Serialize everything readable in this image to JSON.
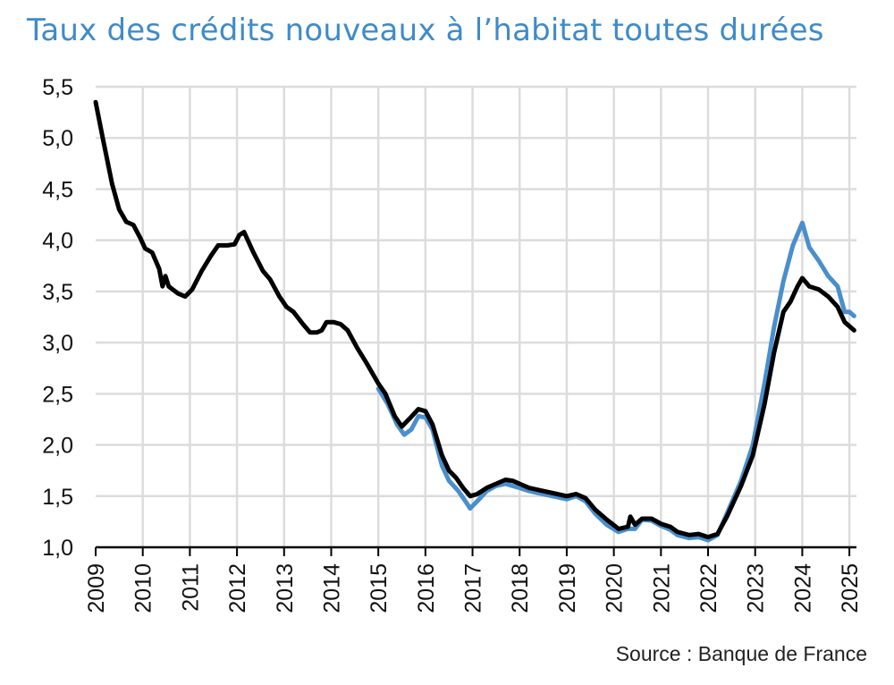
{
  "chart_data": {
    "type": "line",
    "title": "Taux des crédits nouveaux à l’habitat toutes durées",
    "source": "Source : Banque de France",
    "xlim": [
      2009,
      2025.15
    ],
    "ylim": [
      1.0,
      5.5
    ],
    "yticks": [
      "1,0",
      "1,5",
      "2,0",
      "2,5",
      "3,0",
      "3,5",
      "4,0",
      "4,5",
      "5,0",
      "5,5"
    ],
    "xticks": [
      "2009",
      "2010",
      "2011",
      "2012",
      "2013",
      "2014",
      "2015",
      "2016",
      "2017",
      "2018",
      "2019",
      "2020",
      "2021",
      "2022",
      "2023",
      "2024",
      "2025"
    ],
    "grid": true,
    "series": [
      {
        "color": "#000000",
        "points": [
          [
            2009.0,
            5.35
          ],
          [
            2009.15,
            5.0
          ],
          [
            2009.35,
            4.55
          ],
          [
            2009.5,
            4.3
          ],
          [
            2009.65,
            4.18
          ],
          [
            2009.8,
            4.15
          ],
          [
            2009.95,
            4.02
          ],
          [
            2010.05,
            3.92
          ],
          [
            2010.2,
            3.88
          ],
          [
            2010.35,
            3.72
          ],
          [
            2010.42,
            3.55
          ],
          [
            2010.48,
            3.65
          ],
          [
            2010.55,
            3.55
          ],
          [
            2010.75,
            3.48
          ],
          [
            2010.9,
            3.45
          ],
          [
            2011.05,
            3.52
          ],
          [
            2011.25,
            3.7
          ],
          [
            2011.45,
            3.85
          ],
          [
            2011.6,
            3.95
          ],
          [
            2011.8,
            3.95
          ],
          [
            2011.95,
            3.96
          ],
          [
            2012.05,
            4.05
          ],
          [
            2012.15,
            4.08
          ],
          [
            2012.35,
            3.88
          ],
          [
            2012.55,
            3.7
          ],
          [
            2012.7,
            3.62
          ],
          [
            2012.9,
            3.45
          ],
          [
            2013.05,
            3.35
          ],
          [
            2013.2,
            3.3
          ],
          [
            2013.4,
            3.18
          ],
          [
            2013.55,
            3.1
          ],
          [
            2013.7,
            3.1
          ],
          [
            2013.8,
            3.12
          ],
          [
            2013.9,
            3.2
          ],
          [
            2014.05,
            3.2
          ],
          [
            2014.2,
            3.18
          ],
          [
            2014.35,
            3.12
          ],
          [
            2014.55,
            2.95
          ],
          [
            2014.75,
            2.8
          ],
          [
            2014.9,
            2.68
          ],
          [
            2015.0,
            2.6
          ],
          [
            2015.15,
            2.5
          ],
          [
            2015.35,
            2.28
          ],
          [
            2015.5,
            2.18
          ],
          [
            2015.65,
            2.25
          ],
          [
            2015.85,
            2.35
          ],
          [
            2016.0,
            2.33
          ],
          [
            2016.15,
            2.2
          ],
          [
            2016.35,
            1.9
          ],
          [
            2016.5,
            1.75
          ],
          [
            2016.65,
            1.68
          ],
          [
            2016.8,
            1.58
          ],
          [
            2016.95,
            1.5
          ],
          [
            2017.1,
            1.52
          ],
          [
            2017.3,
            1.58
          ],
          [
            2017.5,
            1.62
          ],
          [
            2017.7,
            1.66
          ],
          [
            2017.85,
            1.65
          ],
          [
            2018.0,
            1.62
          ],
          [
            2018.2,
            1.58
          ],
          [
            2018.5,
            1.55
          ],
          [
            2018.8,
            1.52
          ],
          [
            2019.0,
            1.5
          ],
          [
            2019.2,
            1.52
          ],
          [
            2019.4,
            1.48
          ],
          [
            2019.6,
            1.37
          ],
          [
            2019.85,
            1.27
          ],
          [
            2020.1,
            1.18
          ],
          [
            2020.3,
            1.2
          ],
          [
            2020.35,
            1.3
          ],
          [
            2020.45,
            1.22
          ],
          [
            2020.6,
            1.28
          ],
          [
            2020.8,
            1.28
          ],
          [
            2021.0,
            1.23
          ],
          [
            2021.2,
            1.2
          ],
          [
            2021.35,
            1.15
          ],
          [
            2021.6,
            1.12
          ],
          [
            2021.8,
            1.13
          ],
          [
            2022.0,
            1.1
          ],
          [
            2022.2,
            1.13
          ],
          [
            2022.4,
            1.3
          ],
          [
            2022.7,
            1.6
          ],
          [
            2022.95,
            1.9
          ],
          [
            2023.2,
            2.4
          ],
          [
            2023.4,
            2.9
          ],
          [
            2023.6,
            3.3
          ],
          [
            2023.75,
            3.4
          ],
          [
            2023.9,
            3.55
          ],
          [
            2024.0,
            3.63
          ],
          [
            2024.15,
            3.55
          ],
          [
            2024.35,
            3.52
          ],
          [
            2024.55,
            3.45
          ],
          [
            2024.75,
            3.35
          ],
          [
            2024.9,
            3.2
          ],
          [
            2025.1,
            3.12
          ]
        ]
      },
      {
        "color": "#4a8fcc",
        "points": [
          [
            2015.0,
            2.55
          ],
          [
            2015.2,
            2.4
          ],
          [
            2015.4,
            2.2
          ],
          [
            2015.55,
            2.1
          ],
          [
            2015.7,
            2.15
          ],
          [
            2015.85,
            2.28
          ],
          [
            2016.0,
            2.27
          ],
          [
            2016.15,
            2.15
          ],
          [
            2016.35,
            1.8
          ],
          [
            2016.5,
            1.65
          ],
          [
            2016.7,
            1.55
          ],
          [
            2016.85,
            1.45
          ],
          [
            2016.95,
            1.38
          ],
          [
            2017.1,
            1.45
          ],
          [
            2017.3,
            1.55
          ],
          [
            2017.5,
            1.6
          ],
          [
            2017.7,
            1.62
          ],
          [
            2017.85,
            1.6
          ],
          [
            2018.0,
            1.58
          ],
          [
            2018.2,
            1.55
          ],
          [
            2018.5,
            1.52
          ],
          [
            2018.8,
            1.49
          ],
          [
            2019.0,
            1.47
          ],
          [
            2019.2,
            1.5
          ],
          [
            2019.4,
            1.45
          ],
          [
            2019.6,
            1.33
          ],
          [
            2019.85,
            1.22
          ],
          [
            2020.1,
            1.15
          ],
          [
            2020.3,
            1.18
          ],
          [
            2020.45,
            1.18
          ],
          [
            2020.6,
            1.27
          ],
          [
            2020.8,
            1.26
          ],
          [
            2021.0,
            1.21
          ],
          [
            2021.2,
            1.17
          ],
          [
            2021.35,
            1.12
          ],
          [
            2021.6,
            1.09
          ],
          [
            2021.8,
            1.1
          ],
          [
            2022.0,
            1.07
          ],
          [
            2022.2,
            1.12
          ],
          [
            2022.4,
            1.33
          ],
          [
            2022.7,
            1.65
          ],
          [
            2022.95,
            2.0
          ],
          [
            2023.2,
            2.6
          ],
          [
            2023.4,
            3.15
          ],
          [
            2023.6,
            3.6
          ],
          [
            2023.8,
            3.95
          ],
          [
            2024.0,
            4.17
          ],
          [
            2024.15,
            3.93
          ],
          [
            2024.35,
            3.8
          ],
          [
            2024.55,
            3.65
          ],
          [
            2024.75,
            3.55
          ],
          [
            2024.9,
            3.3
          ],
          [
            2025.0,
            3.3
          ],
          [
            2025.1,
            3.26
          ]
        ]
      }
    ]
  }
}
